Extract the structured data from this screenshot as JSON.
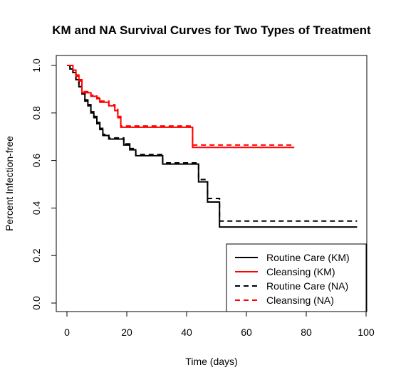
{
  "chart_data": {
    "type": "line",
    "title": "KM and NA Survival Curves for Two Types of Treatment",
    "xlabel": "Time (days)",
    "ylabel": "Percent Infection-free",
    "xlim": [
      0,
      100
    ],
    "ylim": [
      0,
      1
    ],
    "x_ticks": [
      "0",
      "20",
      "40",
      "60",
      "80",
      "100"
    ],
    "y_ticks": [
      "0.0",
      "0.2",
      "0.4",
      "0.6",
      "0.8",
      "1.0"
    ],
    "grid": false,
    "legend_position": "bottom-right",
    "series": [
      {
        "name": "Routine Care (KM)",
        "color": "#000000",
        "dash": "solid",
        "steps": [
          [
            0,
            1.0
          ],
          [
            1,
            0.985
          ],
          [
            2,
            0.97
          ],
          [
            3,
            0.94
          ],
          [
            4,
            0.91
          ],
          [
            5,
            0.88
          ],
          [
            6,
            0.85
          ],
          [
            7,
            0.83
          ],
          [
            8,
            0.8
          ],
          [
            9,
            0.78
          ],
          [
            10,
            0.755
          ],
          [
            11,
            0.73
          ],
          [
            12,
            0.705
          ],
          [
            14,
            0.69
          ],
          [
            19,
            0.665
          ],
          [
            21,
            0.645
          ],
          [
            23,
            0.62
          ],
          [
            32,
            0.585
          ],
          [
            44,
            0.51
          ],
          [
            47,
            0.425
          ],
          [
            51,
            0.32
          ],
          [
            97,
            0.32
          ]
        ]
      },
      {
        "name": "Cleansing (KM)",
        "color": "#ff0000",
        "dash": "solid",
        "steps": [
          [
            0,
            1.0
          ],
          [
            2,
            0.98
          ],
          [
            3,
            0.955
          ],
          [
            4,
            0.935
          ],
          [
            5,
            0.885
          ],
          [
            8,
            0.87
          ],
          [
            10,
            0.86
          ],
          [
            11,
            0.845
          ],
          [
            14,
            0.83
          ],
          [
            16,
            0.81
          ],
          [
            17,
            0.78
          ],
          [
            18,
            0.74
          ],
          [
            42,
            0.655
          ],
          [
            76,
            0.655
          ]
        ]
      },
      {
        "name": "Routine Care (NA)",
        "color": "#000000",
        "dash": "dashed",
        "steps": [
          [
            0,
            1.0
          ],
          [
            1,
            0.985
          ],
          [
            2,
            0.97
          ],
          [
            3,
            0.945
          ],
          [
            4,
            0.915
          ],
          [
            5,
            0.885
          ],
          [
            6,
            0.855
          ],
          [
            7,
            0.835
          ],
          [
            8,
            0.805
          ],
          [
            9,
            0.785
          ],
          [
            10,
            0.76
          ],
          [
            11,
            0.735
          ],
          [
            12,
            0.71
          ],
          [
            14,
            0.695
          ],
          [
            19,
            0.67
          ],
          [
            21,
            0.65
          ],
          [
            23,
            0.625
          ],
          [
            32,
            0.59
          ],
          [
            44,
            0.52
          ],
          [
            47,
            0.44
          ],
          [
            51,
            0.345
          ],
          [
            97,
            0.345
          ]
        ]
      },
      {
        "name": "Cleansing (NA)",
        "color": "#ff0000",
        "dash": "dashed",
        "steps": [
          [
            0,
            1.0
          ],
          [
            2,
            0.98
          ],
          [
            3,
            0.96
          ],
          [
            4,
            0.94
          ],
          [
            5,
            0.89
          ],
          [
            8,
            0.875
          ],
          [
            10,
            0.865
          ],
          [
            11,
            0.85
          ],
          [
            14,
            0.835
          ],
          [
            16,
            0.815
          ],
          [
            17,
            0.785
          ],
          [
            18,
            0.745
          ],
          [
            42,
            0.665
          ],
          [
            76,
            0.665
          ]
        ]
      }
    ]
  }
}
